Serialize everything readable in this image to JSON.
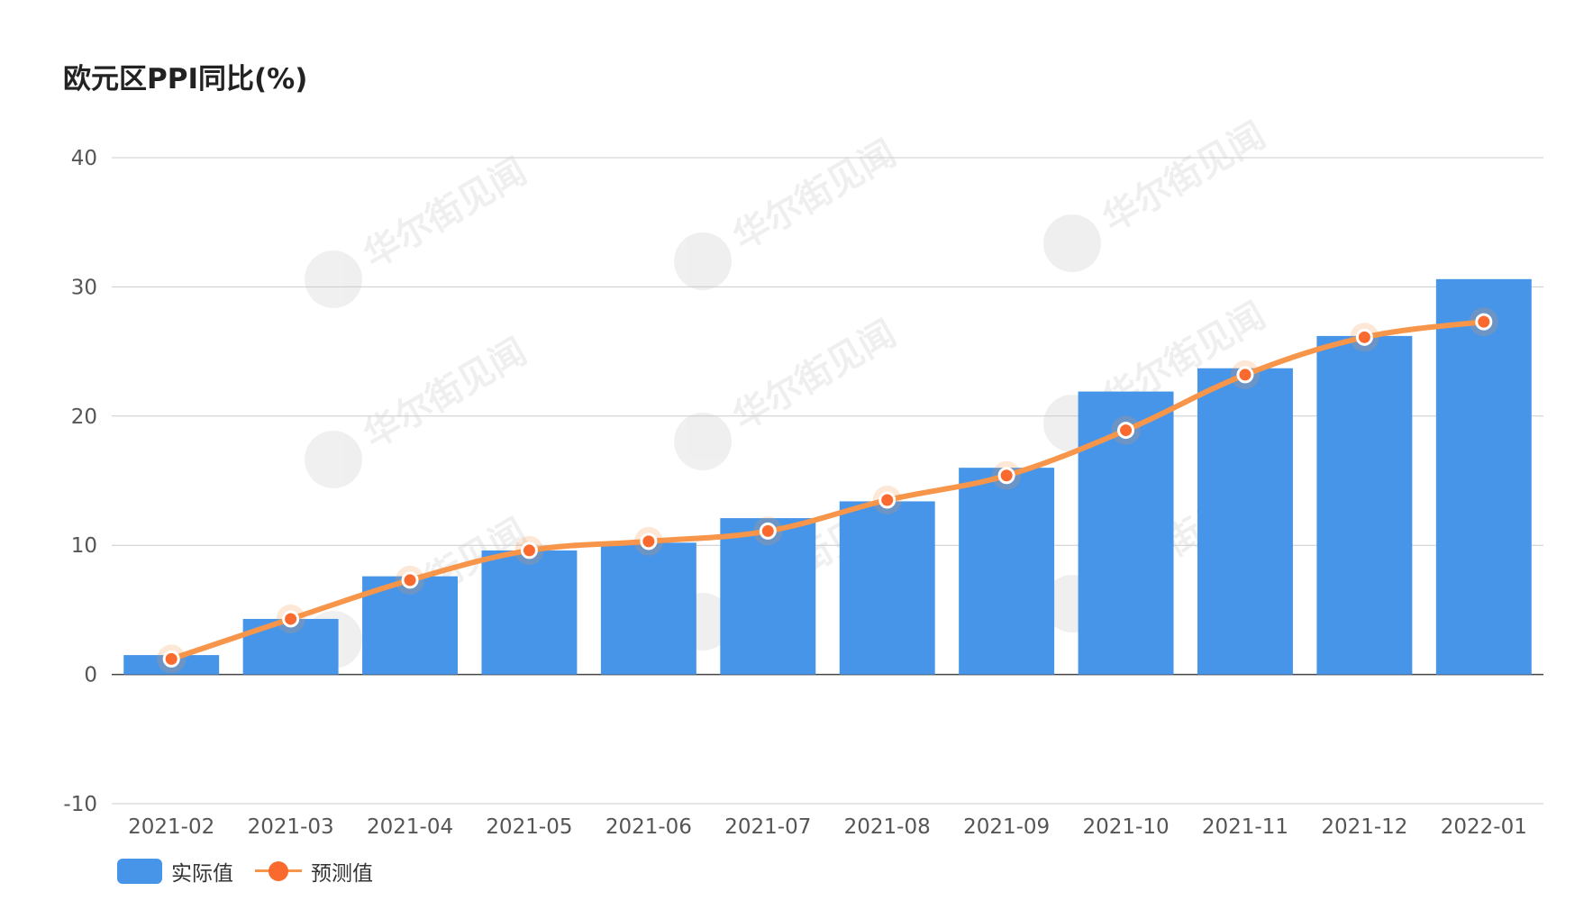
{
  "chart_data": {
    "type": "bar",
    "title": "欧元区PPI同比(%)",
    "categories": [
      "2021-02",
      "2021-03",
      "2021-04",
      "2021-05",
      "2021-06",
      "2021-07",
      "2021-08",
      "2021-09",
      "2021-10",
      "2021-11",
      "2021-12",
      "2022-01"
    ],
    "series": [
      {
        "name": "实际值",
        "type": "bar",
        "color": "#4695e8",
        "values": [
          1.5,
          4.3,
          7.6,
          9.6,
          10.2,
          12.1,
          13.4,
          16.0,
          21.9,
          23.7,
          26.2,
          30.6
        ]
      },
      {
        "name": "预测值",
        "type": "line",
        "color": "#f7954a",
        "marker_color": "#fa6a2f",
        "values": [
          1.2,
          4.3,
          7.3,
          9.6,
          10.3,
          11.1,
          13.5,
          15.4,
          18.9,
          23.2,
          26.1,
          27.3
        ]
      }
    ],
    "ylim": [
      -10,
      40
    ],
    "yticks": [
      -10,
      0,
      10,
      20,
      30,
      40
    ],
    "grid": true,
    "legend_position": "bottom-left",
    "watermark_text": "华尔街见闻"
  }
}
